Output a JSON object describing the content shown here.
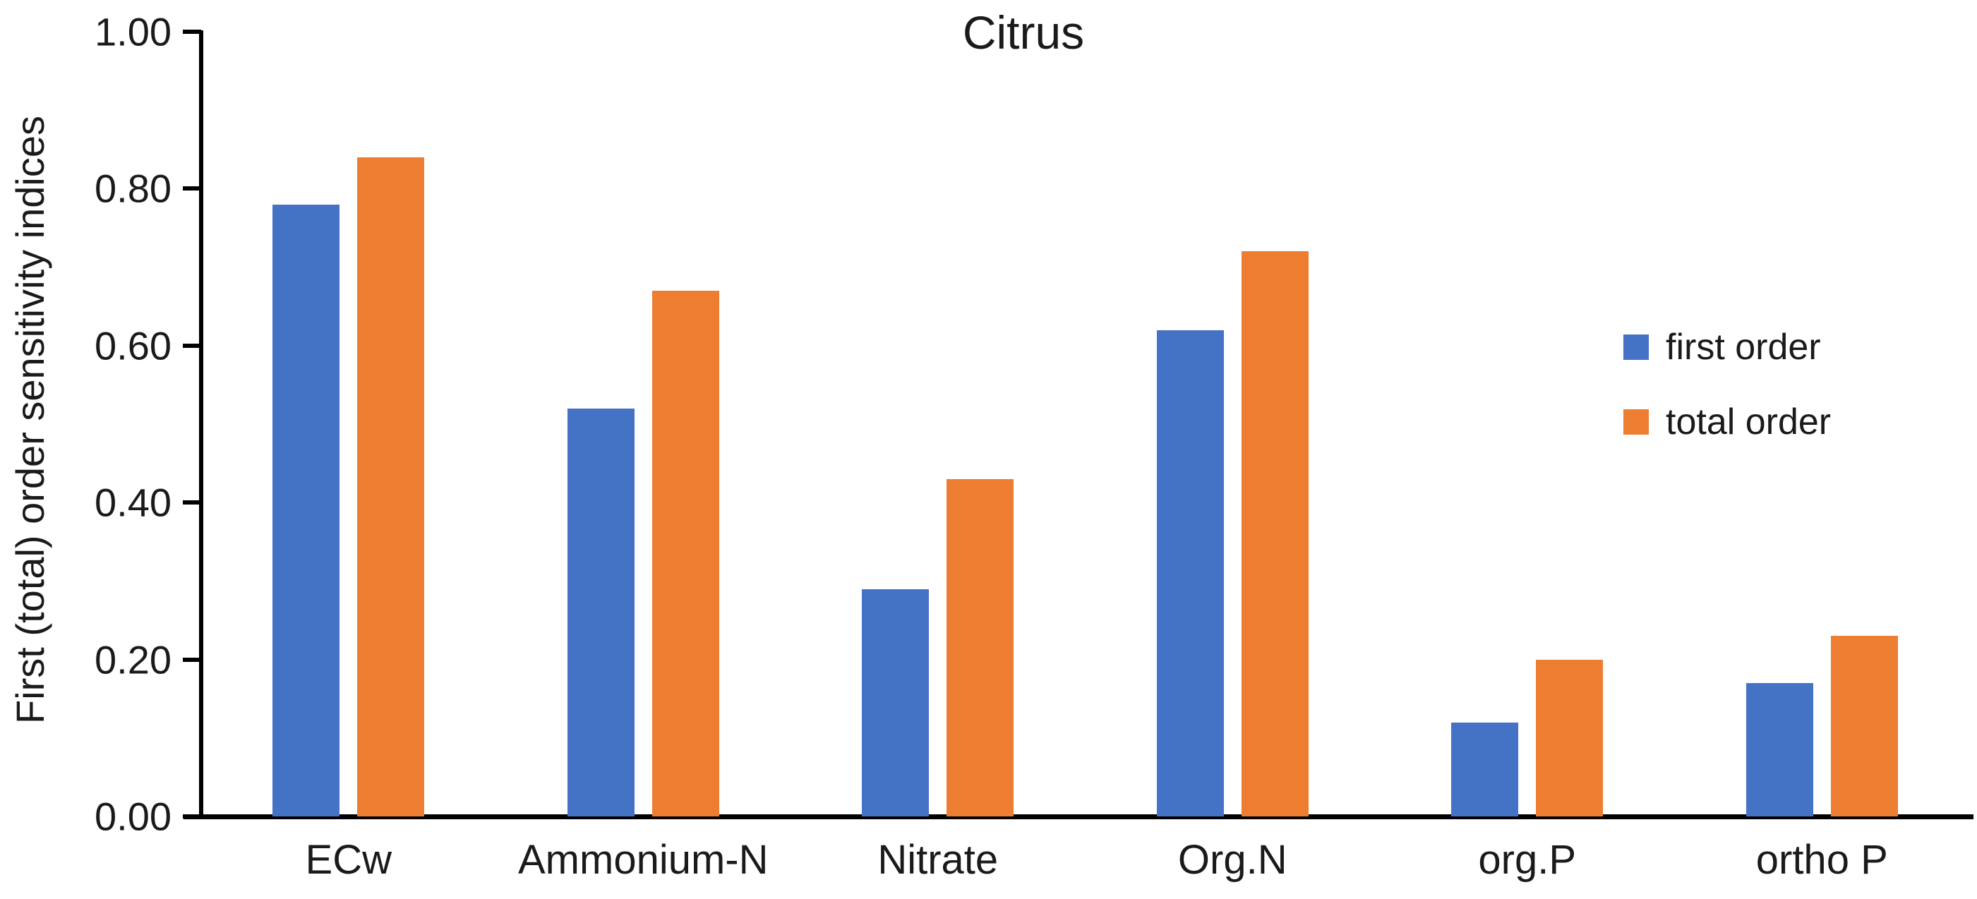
{
  "chart_data": {
    "type": "bar",
    "title": "Citrus",
    "xlabel": "",
    "ylabel": "First (total) order sensitivity indices",
    "categories": [
      "ECw",
      "Ammonium-N",
      "Nitrate",
      "Org.N",
      "org.P",
      "ortho P"
    ],
    "series": [
      {
        "name": "first order",
        "color": "#4472C4",
        "values": [
          0.78,
          0.52,
          0.29,
          0.62,
          0.12,
          0.17
        ]
      },
      {
        "name": "total order",
        "color": "#ED7D31",
        "values": [
          0.84,
          0.67,
          0.43,
          0.72,
          0.2,
          0.23
        ]
      }
    ],
    "ylim": [
      0,
      1
    ],
    "ytick_step": 0.2,
    "ytick_decimals": 2,
    "grid": false,
    "legend_position": "right",
    "axis_color": "#000000",
    "text_color": "#1a1a1a"
  }
}
